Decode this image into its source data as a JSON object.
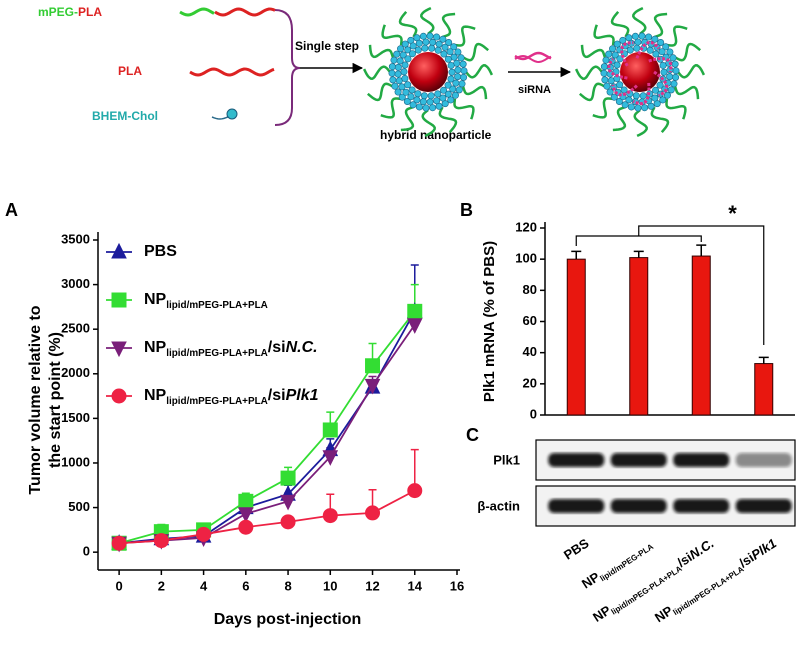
{
  "schematic": {
    "mpeg": "mPEG-",
    "pla_block": "PLA",
    "pla": "PLA",
    "bhem": "BHEM-Chol",
    "step": "Single step",
    "sirna": "siRNA",
    "particle": "hybrid nanoparticle"
  },
  "chart_data": [
    {
      "type": "line",
      "label": "A",
      "x_label": "Days post-injection",
      "y_label": [
        "Tumor volume relative to",
        "the start point (%)"
      ],
      "x": [
        0,
        2,
        4,
        6,
        8,
        10,
        12,
        14
      ],
      "xlim": [
        -1,
        16
      ],
      "xticks": [
        0,
        2,
        4,
        6,
        8,
        10,
        12,
        14,
        16
      ],
      "ylim": [
        -200,
        3500
      ],
      "yticks": [
        0,
        500,
        1000,
        1500,
        2000,
        2500,
        3000,
        3500
      ],
      "series": [
        {
          "name": [
            "PBS"
          ],
          "color": "#1c1c9c",
          "marker": "triangle",
          "values": [
            100,
            150,
            180,
            500,
            650,
            1150,
            1850,
            2700
          ],
          "errors": [
            30,
            60,
            60,
            80,
            100,
            120,
            80,
            520
          ]
        },
        {
          "name": [
            "NP",
            "lipid/mPEG-PLA+PLA"
          ],
          "color": "#33dd33",
          "marker": "square",
          "values": [
            100,
            230,
            250,
            570,
            830,
            1370,
            2090,
            2700
          ],
          "errors": [
            30,
            80,
            60,
            90,
            120,
            200,
            250,
            300
          ]
        },
        {
          "name": [
            "NP",
            "lipid/mPEG-PLA+PLA",
            "/si",
            "N.C."
          ],
          "color": "#7a1f7a",
          "marker": "triangle-down",
          "values": [
            100,
            130,
            160,
            430,
            570,
            1070,
            1870,
            2550
          ],
          "errors": [
            20,
            40,
            40,
            60,
            90,
            100,
            100,
            150
          ]
        },
        {
          "name": [
            "NP",
            "lipid/mPEG-PLA+PLA",
            "/si",
            "Plk1"
          ],
          "color": "#ee2244",
          "marker": "circle",
          "values": [
            100,
            130,
            200,
            280,
            340,
            410,
            440,
            690
          ],
          "errors": [
            20,
            30,
            30,
            40,
            50,
            240,
            260,
            460
          ]
        }
      ]
    },
    {
      "type": "bar",
      "label": "B",
      "y_label": "Plk1 mRNA  (% of PBS)",
      "values": [
        100,
        101,
        102,
        33
      ],
      "errors": [
        5,
        4,
        7,
        4
      ],
      "color": "#e8170f",
      "ylim": [
        0,
        120
      ],
      "yticks": [
        0,
        20,
        40,
        60,
        80,
        100,
        120
      ],
      "annotation": "*"
    }
  ],
  "blot": {
    "label": "C",
    "rows": [
      "Plk1",
      "β-actin"
    ],
    "lanes": [
      [
        "PBS"
      ],
      [
        "NP",
        "lipid/mPEG-PLA"
      ],
      [
        "NP",
        "lipid/mPEG-PLA+PLA",
        "/si",
        "N.C."
      ],
      [
        "NP",
        "lipid/mPEG-PLA+PLA",
        "/si",
        "Plk1"
      ]
    ]
  }
}
